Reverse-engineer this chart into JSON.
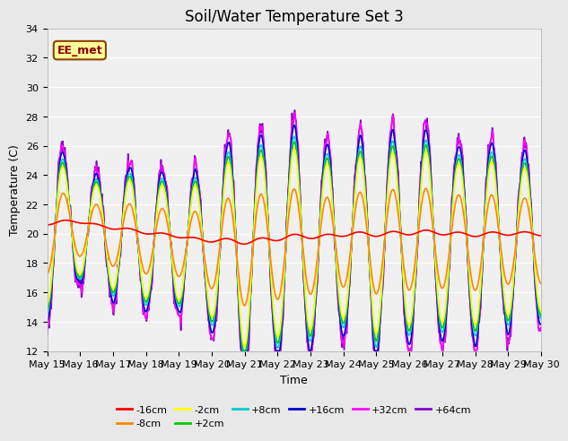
{
  "title": "Soil/Water Temperature Set 3",
  "xlabel": "Time",
  "ylabel": "Temperature (C)",
  "ylim": [
    12,
    34
  ],
  "yticks": [
    12,
    14,
    16,
    18,
    20,
    22,
    24,
    26,
    28,
    30,
    32,
    34
  ],
  "xtick_labels": [
    "May 15",
    "May 16",
    "May 17",
    "May 18",
    "May 19",
    "May 20",
    "May 21",
    "May 22",
    "May 23",
    "May 24",
    "May 25",
    "May 26",
    "May 27",
    "May 28",
    "May 29",
    "May 30"
  ],
  "series_colors": [
    "#ff0000",
    "#ff8800",
    "#ffff00",
    "#00cc00",
    "#00cccc",
    "#0000cc",
    "#ff00ff",
    "#8800cc"
  ],
  "series_labels": [
    "-16cm",
    "-8cm",
    "-2cm",
    "+2cm",
    "+8cm",
    "+16cm",
    "+32cm",
    "+64cm"
  ],
  "watermark_text": "EE_met",
  "bg_color": "#e8e8e8",
  "plot_bg_color": "#f0f0f0",
  "title_fontsize": 12,
  "label_fontsize": 9,
  "tick_fontsize": 8,
  "legend_fontsize": 8
}
